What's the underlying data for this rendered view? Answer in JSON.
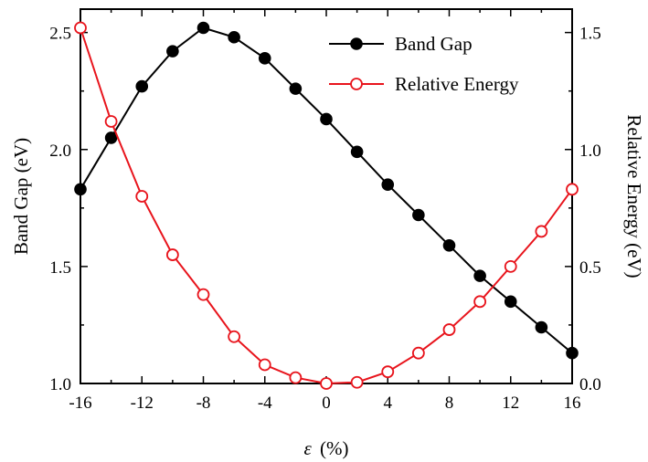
{
  "chart_data": {
    "type": "line",
    "title": "",
    "x": [
      -16,
      -14,
      -12,
      -10,
      -8,
      -6,
      -4,
      -2,
      0,
      2,
      4,
      6,
      8,
      10,
      12,
      14,
      16
    ],
    "xlabel_symbol": "ε",
    "xlabel_unit": "(%)",
    "xlim": [
      -16,
      16
    ],
    "xticks": [
      "-16",
      "-12",
      "-8",
      "-4",
      "0",
      "4",
      "8",
      "12",
      "16"
    ],
    "y_left": {
      "label": "Band Gap (eV)",
      "lim": [
        1.0,
        2.6
      ],
      "ticks": [
        "1.0",
        "1.5",
        "2.0",
        "2.5"
      ]
    },
    "y_right": {
      "label": "Relative Energy (eV)",
      "lim": [
        0.0,
        1.6
      ],
      "ticks": [
        "0.0",
        "0.5",
        "1.0",
        "1.5"
      ]
    },
    "series": [
      {
        "name": "Band Gap",
        "axis": "left",
        "color": "#000000",
        "marker": "filled-circle",
        "values": [
          1.83,
          2.05,
          2.27,
          2.42,
          2.52,
          2.48,
          2.39,
          2.26,
          2.13,
          1.99,
          1.85,
          1.72,
          1.59,
          1.46,
          1.35,
          1.24,
          1.13
        ]
      },
      {
        "name": "Relative Energy",
        "axis": "right",
        "color": "#e8141c",
        "marker": "open-circle",
        "values": [
          1.52,
          1.12,
          0.8,
          0.55,
          0.38,
          0.2,
          0.08,
          0.025,
          0.0,
          0.005,
          0.05,
          0.13,
          0.23,
          0.35,
          0.5,
          0.65,
          0.83
        ]
      }
    ],
    "legend_position": "top-right"
  }
}
